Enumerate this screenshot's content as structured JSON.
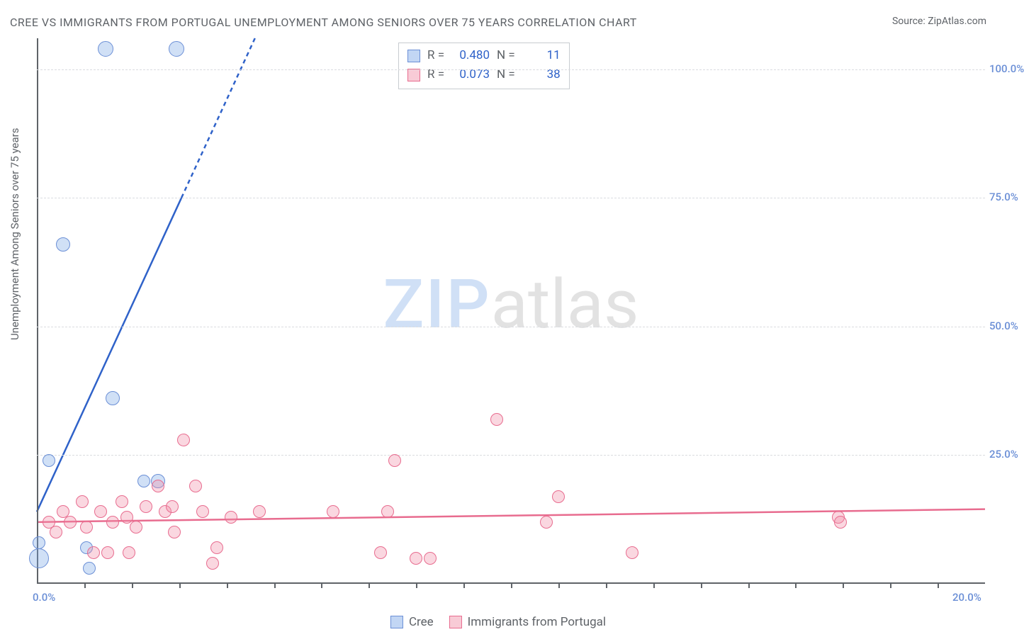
{
  "title": "CREE VS IMMIGRANTS FROM PORTUGAL UNEMPLOYMENT AMONG SENIORS OVER 75 YEARS CORRELATION CHART",
  "source_prefix": "Source: ",
  "source": "ZipAtlas.com",
  "ylabel": "Unemployment Among Seniors over 75 years",
  "watermark": {
    "zip": "ZIP",
    "atlas": "atlas"
  },
  "chart": {
    "type": "scatter",
    "xlim": [
      0,
      20
    ],
    "ylim": [
      0,
      106
    ],
    "x_ticks_major": [
      0,
      20
    ],
    "x_ticks_minor_step": 1,
    "y_gridlines": [
      25,
      50,
      75,
      100
    ],
    "x_tick_labels": [
      "0.0%",
      "20.0%"
    ],
    "y_tick_labels": [
      "25.0%",
      "50.0%",
      "75.0%",
      "100.0%"
    ],
    "background_color": "#ffffff",
    "grid_color": "#dadce0",
    "axis_color": "#5f6368",
    "label_color": "#6b8fd6",
    "marker_radius": 9,
    "series": [
      {
        "name": "Cree",
        "color_fill": "rgba(120,165,230,.35)",
        "color_stroke": "#6b8fd6",
        "trend": {
          "color": "#2f62c9",
          "width": 2.5,
          "x1": 0,
          "y1": 14,
          "x2": 3.05,
          "y2": 75,
          "dash_beyond_x": 3.05,
          "x3": 4.6,
          "y3": 106
        },
        "points": [
          {
            "x": 0.05,
            "y": 5,
            "r": 14
          },
          {
            "x": 0.05,
            "y": 8,
            "r": 9
          },
          {
            "x": 0.25,
            "y": 24,
            "r": 9
          },
          {
            "x": 0.55,
            "y": 66,
            "r": 10
          },
          {
            "x": 1.05,
            "y": 7,
            "r": 9
          },
          {
            "x": 1.1,
            "y": 3,
            "r": 9
          },
          {
            "x": 1.45,
            "y": 104,
            "r": 11
          },
          {
            "x": 1.6,
            "y": 36,
            "r": 10
          },
          {
            "x": 2.25,
            "y": 20,
            "r": 9
          },
          {
            "x": 2.55,
            "y": 20,
            "r": 10
          },
          {
            "x": 2.95,
            "y": 104,
            "r": 11
          }
        ]
      },
      {
        "name": "Immigrants from Portugal",
        "color_fill": "rgba(240,140,165,.35)",
        "color_stroke": "#e86c8f",
        "trend": {
          "color": "#e86c8f",
          "width": 2.5,
          "x1": 0,
          "y1": 12,
          "x2": 20,
          "y2": 14.5
        },
        "points": [
          {
            "x": 0.25,
            "y": 12
          },
          {
            "x": 0.4,
            "y": 10
          },
          {
            "x": 0.55,
            "y": 14
          },
          {
            "x": 0.7,
            "y": 12
          },
          {
            "x": 0.95,
            "y": 16
          },
          {
            "x": 1.05,
            "y": 11
          },
          {
            "x": 1.2,
            "y": 6
          },
          {
            "x": 1.35,
            "y": 14
          },
          {
            "x": 1.5,
            "y": 6
          },
          {
            "x": 1.6,
            "y": 12
          },
          {
            "x": 1.8,
            "y": 16
          },
          {
            "x": 1.9,
            "y": 13
          },
          {
            "x": 1.95,
            "y": 6
          },
          {
            "x": 2.1,
            "y": 11
          },
          {
            "x": 2.3,
            "y": 15
          },
          {
            "x": 2.55,
            "y": 19
          },
          {
            "x": 2.7,
            "y": 14
          },
          {
            "x": 2.85,
            "y": 15
          },
          {
            "x": 2.9,
            "y": 10
          },
          {
            "x": 3.1,
            "y": 28
          },
          {
            "x": 3.35,
            "y": 19
          },
          {
            "x": 3.5,
            "y": 14
          },
          {
            "x": 3.7,
            "y": 4
          },
          {
            "x": 3.8,
            "y": 7
          },
          {
            "x": 4.1,
            "y": 13
          },
          {
            "x": 4.7,
            "y": 14
          },
          {
            "x": 6.25,
            "y": 14
          },
          {
            "x": 7.25,
            "y": 6
          },
          {
            "x": 7.4,
            "y": 14
          },
          {
            "x": 7.55,
            "y": 24
          },
          {
            "x": 8.0,
            "y": 5
          },
          {
            "x": 8.3,
            "y": 5
          },
          {
            "x": 9.7,
            "y": 32
          },
          {
            "x": 10.75,
            "y": 12
          },
          {
            "x": 11.0,
            "y": 17
          },
          {
            "x": 12.55,
            "y": 6
          },
          {
            "x": 16.9,
            "y": 13
          },
          {
            "x": 16.95,
            "y": 12
          }
        ]
      }
    ]
  },
  "stats_legend": {
    "rows": [
      {
        "swatch": "blue",
        "r_label": "R =",
        "r": "0.480",
        "n_label": "N =",
        "n": "11"
      },
      {
        "swatch": "pink",
        "r_label": "R =",
        "r": "0.073",
        "n_label": "N =",
        "n": "38"
      }
    ]
  },
  "bottom_legend": [
    {
      "swatch": "blue",
      "label": "Cree"
    },
    {
      "swatch": "pink",
      "label": "Immigrants from Portugal"
    }
  ]
}
